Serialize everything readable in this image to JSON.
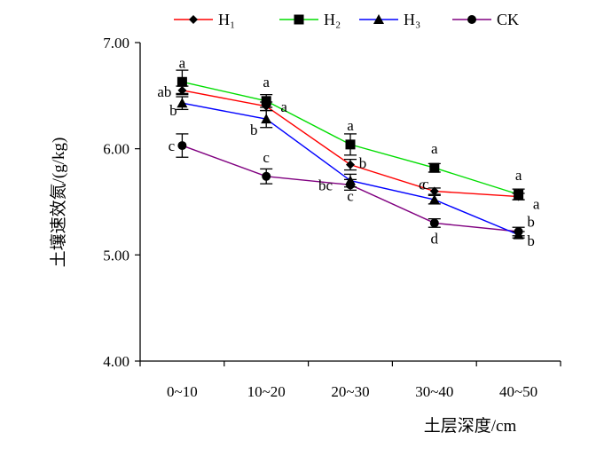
{
  "chart_data": {
    "type": "line",
    "title": "",
    "xlabel": "土层深度/cm",
    "ylabel": "土壤速效氮/(g/kg)",
    "categories": [
      "0~10",
      "10~20",
      "20~30",
      "30~40",
      "40~50"
    ],
    "ylim": [
      4.0,
      7.0
    ],
    "yticks": [
      "4.00",
      "5.00",
      "6.00",
      "7.00"
    ],
    "grid": false,
    "legend_position": "top",
    "series": [
      {
        "name": "H₁",
        "color": "#ff0000",
        "marker": "diamond",
        "values": [
          6.55,
          6.4,
          5.85,
          5.6,
          5.55
        ],
        "errors": [
          0.04,
          0.04,
          0.05,
          0.03,
          0.03
        ],
        "letters": [
          "ab",
          "a",
          "b",
          "c",
          "a"
        ]
      },
      {
        "name": "H₂",
        "color": "#00dd00",
        "marker": "square",
        "values": [
          6.63,
          6.45,
          6.04,
          5.82,
          5.57
        ],
        "errors": [
          0.11,
          0.06,
          0.1,
          0.04,
          0.05
        ],
        "letters": [
          "a",
          "a",
          "a",
          "a",
          "a"
        ]
      },
      {
        "name": "H₃",
        "color": "#0000ff",
        "marker": "triangle",
        "values": [
          6.43,
          6.28,
          5.7,
          5.52,
          5.19
        ],
        "errors": [
          0.06,
          0.08,
          0.06,
          0.04,
          0.03
        ],
        "letters": [
          "b",
          "b",
          "c",
          "c",
          "b"
        ]
      },
      {
        "name": "CK",
        "color": "#800080",
        "marker": "circle",
        "values": [
          6.03,
          5.74,
          5.66,
          5.3,
          5.22
        ],
        "errors": [
          0.11,
          0.07,
          0.05,
          0.04,
          0.04
        ],
        "letters": [
          "c",
          "c",
          "bc",
          "d",
          "b"
        ]
      }
    ]
  }
}
